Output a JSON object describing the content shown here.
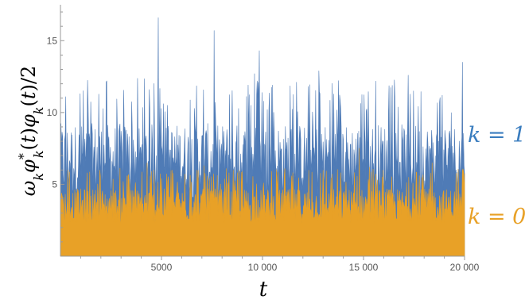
{
  "chart_data": {
    "type": "area",
    "xlabel": "t",
    "ylabel": "ω_k φ*_k(t) φ_k(t)/2",
    "xlim": [
      0,
      20000
    ],
    "ylim": [
      0,
      17.5
    ],
    "x_ticks": [
      {
        "value": 5000,
        "label": "5000"
      },
      {
        "value": 10000,
        "label": "10 000"
      },
      {
        "value": 15000,
        "label": "15 000"
      },
      {
        "value": 20000,
        "label": "20 000"
      }
    ],
    "y_ticks": [
      {
        "value": 5,
        "label": "5"
      },
      {
        "value": 10,
        "label": "10"
      },
      {
        "value": 15,
        "label": "15"
      }
    ],
    "grid": false,
    "series": [
      {
        "label": "k = 1",
        "color": "#4f7bb6",
        "baseline": 7.0,
        "typical_range": [
          4.0,
          11.0
        ],
        "peaks": [
          {
            "x": 2300,
            "y": 12.2
          },
          {
            "x": 4850,
            "y": 16.6
          },
          {
            "x": 7600,
            "y": 15.7
          },
          {
            "x": 9600,
            "y": 12.7
          },
          {
            "x": 9850,
            "y": 14.3
          },
          {
            "x": 12800,
            "y": 12.9
          },
          {
            "x": 17200,
            "y": 12.6
          },
          {
            "x": 19900,
            "y": 13.5
          }
        ]
      },
      {
        "label": "k = 0",
        "color": "#e8a127",
        "baseline": 3.5,
        "typical_range": [
          2.3,
          5.5
        ],
        "peaks": [
          {
            "x": 4300,
            "y": 6.5
          },
          {
            "x": 7100,
            "y": 6.3
          },
          {
            "x": 11100,
            "y": 6.1
          },
          {
            "x": 14800,
            "y": 7.5
          },
          {
            "x": 15300,
            "y": 6.2
          },
          {
            "x": 18400,
            "y": 6.5
          }
        ]
      }
    ]
  },
  "labels": {
    "series_k1": "k = 1",
    "series_k0": "k = 0"
  }
}
